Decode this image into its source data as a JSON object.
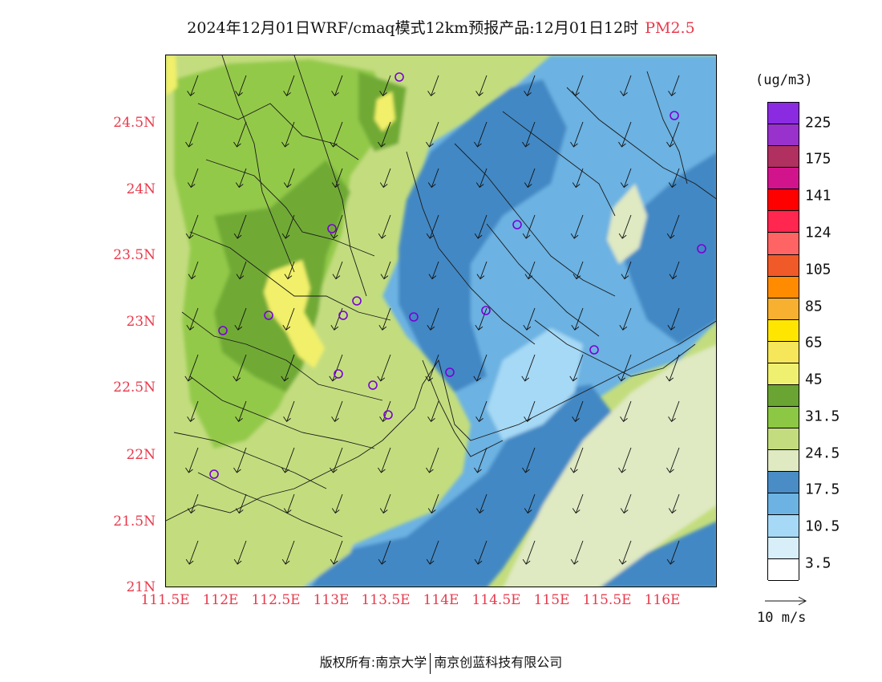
{
  "title": {
    "main": "2024年12月01日WRF/cmaq模式12km预报产品:12月01日12时",
    "pollutant": "PM2.5"
  },
  "map": {
    "y_labels": [
      "24.5N",
      "24N",
      "23.5N",
      "23N",
      "22.5N",
      "22N",
      "21.5N",
      "21N"
    ],
    "x_labels": [
      "111.5E",
      "112E",
      "112.5E",
      "113E",
      "113.5E",
      "114E",
      "114.5E",
      "115E",
      "115.5E",
      "116E"
    ],
    "colors": {
      "pale_green": "#dfe9c2",
      "green_light": "#c3dd7e",
      "green_mid": "#93c94a",
      "green_dark": "#6faa36",
      "yellow": "#f2f06b",
      "blue_light": "#a6d9f5",
      "blue_mid": "#6cb2e2",
      "blue_dark": "#4388c4"
    },
    "wind_direction": "southwest-pointing"
  },
  "legend": {
    "unit": "(ug/m3)",
    "labels": [
      "225",
      "175",
      "141",
      "124",
      "105",
      "85",
      "65",
      "45",
      "31.5",
      "24.5",
      "17.5",
      "10.5",
      "3.5"
    ],
    "colors": [
      "#8a2be2",
      "#9932cc",
      "#b03060",
      "#d2148c",
      "#ff0000",
      "#ff2650",
      "#ff6464",
      "#f05a28",
      "#ff8c00",
      "#f8b030",
      "#ffe600",
      "#f5e65a",
      "#f0f070",
      "#6aa432",
      "#8cc843",
      "#c3dd7e",
      "#dfe9c2",
      "#4a8cc6",
      "#6cb2e2",
      "#a6d9f5",
      "#d8eef9",
      "#ffffff"
    ]
  },
  "scale": {
    "label": "10 m/s"
  },
  "copyright": {
    "prefix": "版权所有:",
    "org1": "南京大学",
    "org2": "南京创蓝科技有限公司"
  }
}
